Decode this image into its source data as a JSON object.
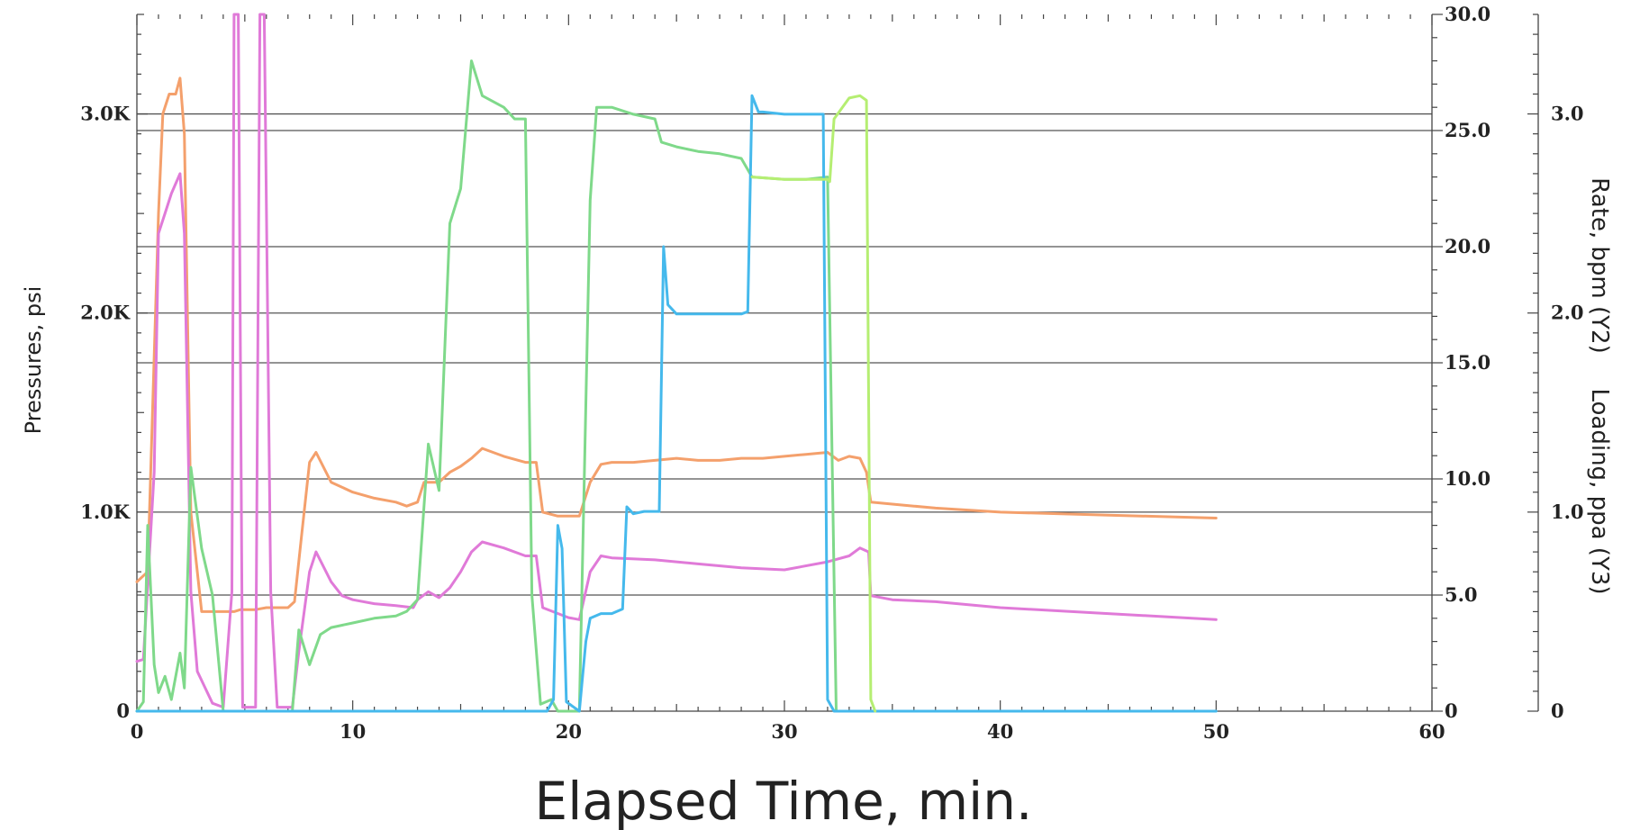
{
  "chart_data": {
    "type": "line",
    "title": "",
    "xlabel": "Elapsed Time, min.",
    "ylabel": "Pressures, psi",
    "y2label": "Rate, bpm (Y2)",
    "y3label": "Loading, ppa (Y3)",
    "xlim": [
      0,
      60
    ],
    "ylim": [
      0,
      3500
    ],
    "y2lim": [
      0,
      30
    ],
    "y3lim": [
      0,
      3.5
    ],
    "grid": true,
    "x_ticks": [
      "0",
      "10",
      "20",
      "30",
      "40",
      "50",
      "60"
    ],
    "y_ticks": [
      "0",
      "1.0K",
      "2.0K",
      "3.0K"
    ],
    "y2_ticks": [
      "0",
      "5.0",
      "10.0",
      "15.0",
      "20.0",
      "25.0",
      "30.0"
    ],
    "y3_ticks": [
      "0",
      "1.0",
      "2.0",
      "3.0"
    ],
    "series": [
      {
        "color": "#f4a06c",
        "axis": "y",
        "points": [
          [
            0,
            650
          ],
          [
            0.5,
            700
          ],
          [
            1,
            2500
          ],
          [
            1.2,
            3000
          ],
          [
            1.5,
            3100
          ],
          [
            1.8,
            3100
          ],
          [
            2,
            3180
          ],
          [
            2.2,
            2900
          ],
          [
            2.5,
            1000
          ],
          [
            3,
            500
          ],
          [
            4,
            500
          ],
          [
            4.5,
            500
          ],
          [
            4.8,
            510
          ],
          [
            5.5,
            510
          ],
          [
            6,
            520
          ],
          [
            6.5,
            520
          ],
          [
            7,
            520
          ],
          [
            7.3,
            550
          ],
          [
            7.6,
            850
          ],
          [
            8,
            1250
          ],
          [
            8.3,
            1300
          ],
          [
            9,
            1150
          ],
          [
            10,
            1100
          ],
          [
            11,
            1070
          ],
          [
            12,
            1050
          ],
          [
            12.5,
            1030
          ],
          [
            13,
            1050
          ],
          [
            13.3,
            1150
          ],
          [
            14,
            1150
          ],
          [
            14.5,
            1200
          ],
          [
            15,
            1230
          ],
          [
            15.5,
            1270
          ],
          [
            16,
            1320
          ],
          [
            17,
            1280
          ],
          [
            18,
            1250
          ],
          [
            18.5,
            1250
          ],
          [
            18.8,
            1000
          ],
          [
            19.5,
            980
          ],
          [
            20.5,
            980
          ],
          [
            21,
            1150
          ],
          [
            21.5,
            1240
          ],
          [
            22,
            1250
          ],
          [
            23,
            1250
          ],
          [
            24,
            1260
          ],
          [
            25,
            1270
          ],
          [
            26,
            1260
          ],
          [
            27,
            1260
          ],
          [
            28,
            1270
          ],
          [
            29,
            1270
          ],
          [
            30,
            1280
          ],
          [
            31,
            1290
          ],
          [
            32,
            1300
          ],
          [
            32.5,
            1260
          ],
          [
            33,
            1280
          ],
          [
            33.5,
            1270
          ],
          [
            33.8,
            1200
          ],
          [
            34,
            1050
          ],
          [
            35,
            1040
          ],
          [
            36,
            1030
          ],
          [
            37,
            1020
          ],
          [
            40,
            1000
          ],
          [
            45,
            985
          ],
          [
            50,
            970
          ]
        ]
      },
      {
        "color": "#e07ad8",
        "axis": "y",
        "points": [
          [
            0,
            250
          ],
          [
            0.3,
            260
          ],
          [
            0.8,
            1200
          ],
          [
            1,
            2400
          ],
          [
            1.3,
            2500
          ],
          [
            1.6,
            2600
          ],
          [
            2,
            2700
          ],
          [
            2.2,
            2400
          ],
          [
            2.5,
            600
          ],
          [
            2.8,
            200
          ],
          [
            3.5,
            40
          ],
          [
            4,
            20
          ],
          [
            4.4,
            600
          ],
          [
            4.5,
            3500
          ],
          [
            4.7,
            3500
          ],
          [
            4.9,
            20
          ],
          [
            5.5,
            20
          ],
          [
            5.7,
            3500
          ],
          [
            5.9,
            3500
          ],
          [
            6.2,
            600
          ],
          [
            6.5,
            20
          ],
          [
            7.2,
            20
          ],
          [
            7.5,
            300
          ],
          [
            8,
            700
          ],
          [
            8.3,
            800
          ],
          [
            9,
            650
          ],
          [
            9.5,
            580
          ],
          [
            10,
            560
          ],
          [
            11,
            540
          ],
          [
            12,
            530
          ],
          [
            12.8,
            520
          ],
          [
            13,
            560
          ],
          [
            13.5,
            600
          ],
          [
            14,
            570
          ],
          [
            14.5,
            620
          ],
          [
            15,
            700
          ],
          [
            15.5,
            800
          ],
          [
            16,
            850
          ],
          [
            17,
            820
          ],
          [
            18,
            780
          ],
          [
            18.5,
            780
          ],
          [
            18.8,
            520
          ],
          [
            20,
            470
          ],
          [
            20.5,
            460
          ],
          [
            21,
            700
          ],
          [
            21.5,
            780
          ],
          [
            22,
            770
          ],
          [
            24,
            760
          ],
          [
            26,
            740
          ],
          [
            28,
            720
          ],
          [
            30,
            710
          ],
          [
            32,
            750
          ],
          [
            33,
            780
          ],
          [
            33.5,
            820
          ],
          [
            33.9,
            800
          ],
          [
            34,
            580
          ],
          [
            35,
            560
          ],
          [
            37,
            550
          ],
          [
            40,
            520
          ],
          [
            45,
            490
          ],
          [
            50,
            460
          ]
        ]
      },
      {
        "color": "#7fd98a",
        "axis": "y2",
        "points": [
          [
            0,
            0
          ],
          [
            0.3,
            0.4
          ],
          [
            0.5,
            8
          ],
          [
            0.8,
            2
          ],
          [
            1,
            0.8
          ],
          [
            1.3,
            1.5
          ],
          [
            1.6,
            0.5
          ],
          [
            2,
            2.5
          ],
          [
            2.2,
            1
          ],
          [
            2.5,
            10.5
          ],
          [
            3,
            7
          ],
          [
            3.5,
            5
          ],
          [
            4,
            0
          ],
          [
            7.2,
            0
          ],
          [
            7.5,
            3.5
          ],
          [
            8,
            2
          ],
          [
            8.5,
            3.3
          ],
          [
            9,
            3.6
          ],
          [
            10,
            3.8
          ],
          [
            11,
            4
          ],
          [
            12,
            4.1
          ],
          [
            12.5,
            4.3
          ],
          [
            13,
            4.8
          ],
          [
            13.5,
            11.5
          ],
          [
            14,
            9.5
          ],
          [
            14.5,
            21
          ],
          [
            15,
            22.5
          ],
          [
            15.5,
            28
          ],
          [
            16,
            26.5
          ],
          [
            17,
            26
          ],
          [
            17.5,
            25.5
          ],
          [
            18,
            25.5
          ],
          [
            18.3,
            5
          ],
          [
            18.7,
            0.3
          ],
          [
            19.2,
            0.5
          ],
          [
            19.5,
            0
          ],
          [
            20.5,
            0
          ],
          [
            21,
            22
          ],
          [
            21.3,
            26
          ],
          [
            22,
            26
          ],
          [
            23,
            25.7
          ],
          [
            24,
            25.5
          ],
          [
            24.3,
            24.5
          ],
          [
            25,
            24.3
          ],
          [
            26,
            24.1
          ],
          [
            27,
            24
          ],
          [
            28,
            23.8
          ],
          [
            28.5,
            23
          ],
          [
            30,
            22.9
          ],
          [
            31,
            22.9
          ],
          [
            32,
            23
          ],
          [
            32.4,
            0
          ]
        ]
      },
      {
        "color": "#45b9ec",
        "axis": "y2",
        "points": [
          [
            0,
            0
          ],
          [
            19,
            0
          ],
          [
            19.3,
            0.5
          ],
          [
            19.5,
            8
          ],
          [
            19.7,
            7
          ],
          [
            19.9,
            0.4
          ],
          [
            20.5,
            0
          ],
          [
            20.8,
            3
          ],
          [
            21,
            4
          ],
          [
            21.5,
            4.2
          ],
          [
            22,
            4.2
          ],
          [
            22.5,
            4.4
          ],
          [
            22.7,
            8.8
          ],
          [
            23,
            8.5
          ],
          [
            23.5,
            8.6
          ],
          [
            24.2,
            8.6
          ],
          [
            24.4,
            20
          ],
          [
            24.6,
            17.5
          ],
          [
            25,
            17.1
          ],
          [
            26,
            17.1
          ],
          [
            27,
            17.1
          ],
          [
            28,
            17.1
          ],
          [
            28.3,
            17.2
          ],
          [
            28.5,
            26.5
          ],
          [
            28.8,
            25.8
          ],
          [
            29,
            25.8
          ],
          [
            30,
            25.7
          ],
          [
            31,
            25.7
          ],
          [
            31.8,
            25.7
          ],
          [
            32,
            0.5
          ],
          [
            32.3,
            0
          ],
          [
            37,
            0
          ],
          [
            45,
            0
          ],
          [
            50,
            0
          ]
        ]
      },
      {
        "color": "#b5ee72",
        "axis": "y2",
        "points": [
          [
            28.5,
            23
          ],
          [
            30,
            22.9
          ],
          [
            31,
            22.9
          ],
          [
            32,
            22.9
          ],
          [
            32.1,
            22.8
          ],
          [
            32.3,
            25.5
          ],
          [
            33,
            26.4
          ],
          [
            33.5,
            26.5
          ],
          [
            33.8,
            26.3
          ],
          [
            34,
            0.5
          ],
          [
            34.2,
            0
          ]
        ]
      }
    ]
  }
}
